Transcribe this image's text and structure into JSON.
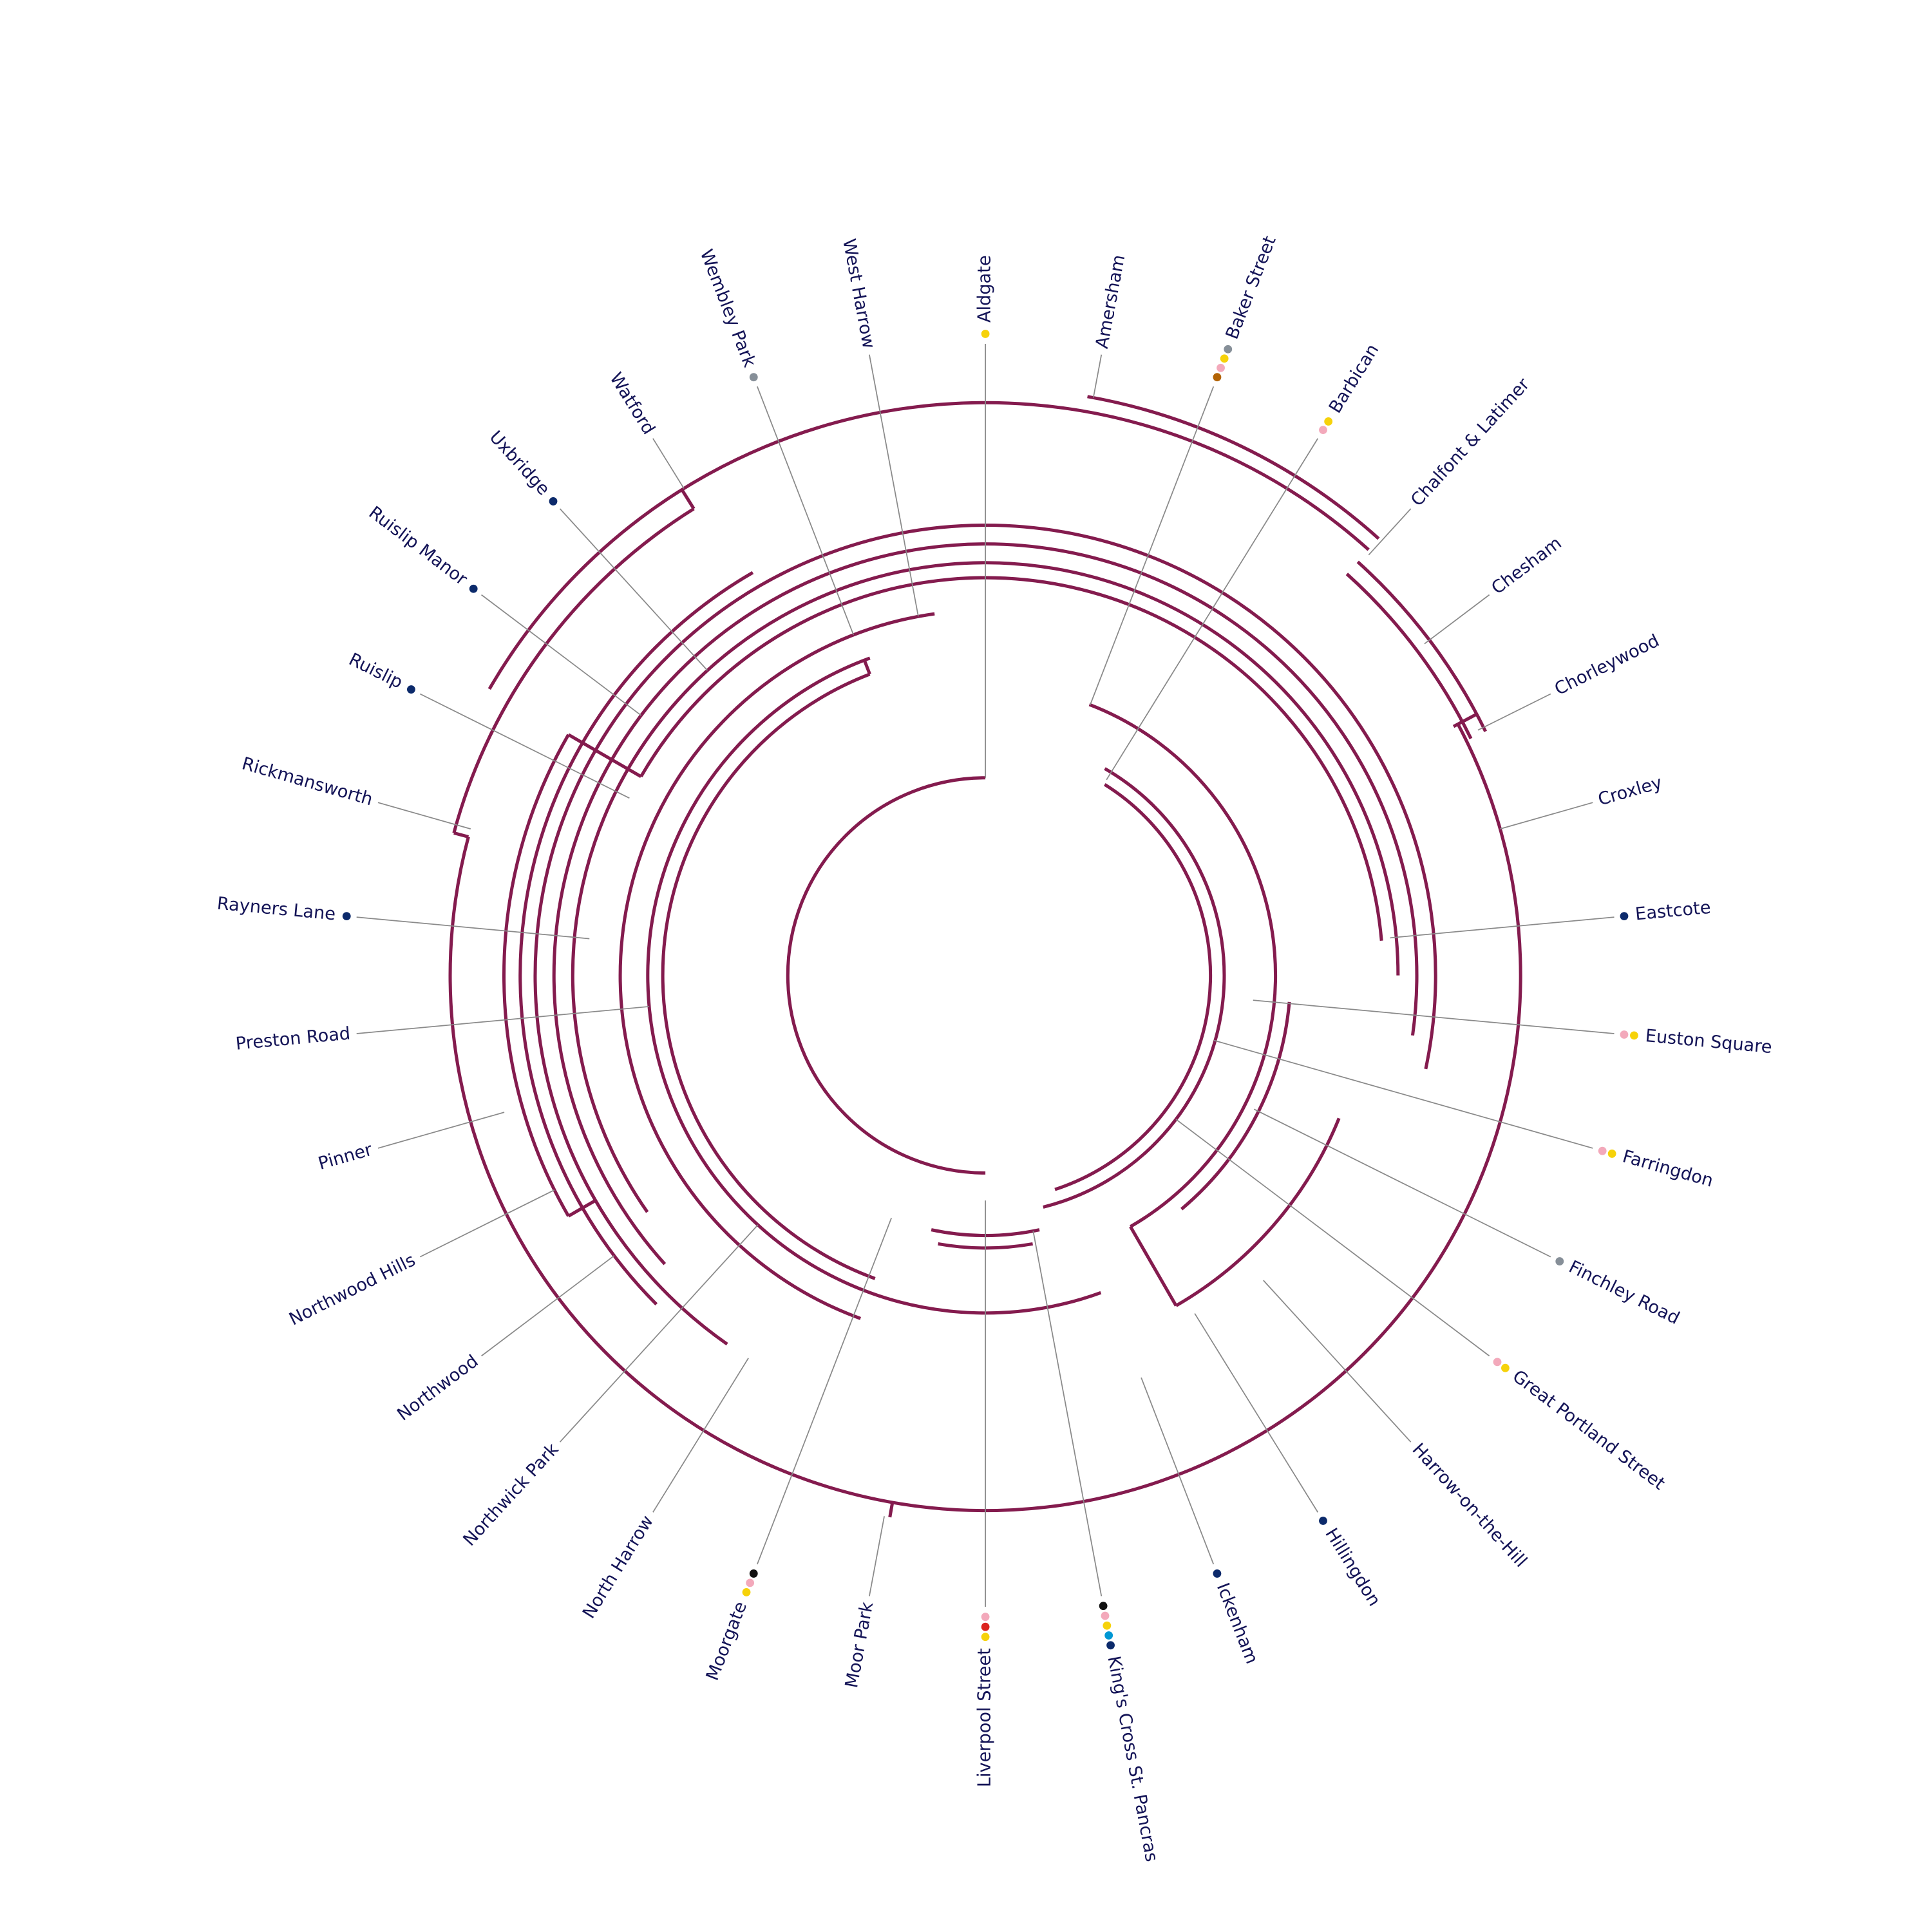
{
  "line_color": "#841b4e",
  "stations": [
    {
      "name": "Aldgate",
      "lines": [
        "#f6d20a"
      ]
    },
    {
      "name": "Amersham",
      "lines": []
    },
    {
      "name": "Baker Street",
      "lines": [
        "#868f98",
        "#f6d20a",
        "#f3a9bb",
        "#b36305"
      ]
    },
    {
      "name": "Barbican",
      "lines": [
        "#f6d20a",
        "#f3a9bb"
      ]
    },
    {
      "name": "Chalfont & Latimer",
      "lines": []
    },
    {
      "name": "Chesham",
      "lines": []
    },
    {
      "name": "Chorleywood",
      "lines": []
    },
    {
      "name": "Croxley",
      "lines": []
    },
    {
      "name": "Eastcote",
      "lines": [
        "#0c2a6b"
      ]
    },
    {
      "name": "Euston Square",
      "lines": [
        "#f6d20a",
        "#f3a9bb"
      ]
    },
    {
      "name": "Farringdon",
      "lines": [
        "#f6d20a",
        "#f3a9bb"
      ]
    },
    {
      "name": "Finchley Road",
      "lines": [
        "#868f98"
      ]
    },
    {
      "name": "Great Portland Street",
      "lines": [
        "#f6d20a",
        "#f3a9bb"
      ]
    },
    {
      "name": "Harrow-on-the-Hill",
      "lines": []
    },
    {
      "name": "Hillingdon",
      "lines": [
        "#0c2a6b"
      ]
    },
    {
      "name": "Ickenham",
      "lines": [
        "#0c2a6b"
      ]
    },
    {
      "name": "King's Cross St. Pancras",
      "lines": [
        "#0c2a6b",
        "#0098d4",
        "#f6d20a",
        "#f3a9bb",
        "#111111"
      ]
    },
    {
      "name": "Liverpool Street",
      "lines": [
        "#f6d20a",
        "#dc241f",
        "#f3a9bb"
      ]
    },
    {
      "name": "Moor Park",
      "lines": []
    },
    {
      "name": "Moorgate",
      "lines": [
        "#f6d20a",
        "#f3a9bb",
        "#111111"
      ]
    },
    {
      "name": "North Harrow",
      "lines": []
    },
    {
      "name": "Northwick Park",
      "lines": []
    },
    {
      "name": "Northwood",
      "lines": []
    },
    {
      "name": "Northwood Hills",
      "lines": []
    },
    {
      "name": "Pinner",
      "lines": []
    },
    {
      "name": "Preston Road",
      "lines": []
    },
    {
      "name": "Rayners Lane",
      "lines": [
        "#0c2a6b"
      ]
    },
    {
      "name": "Rickmansworth",
      "lines": []
    },
    {
      "name": "Ruislip",
      "lines": [
        "#0c2a6b"
      ]
    },
    {
      "name": "Ruislip Manor",
      "lines": [
        "#0c2a6b"
      ]
    },
    {
      "name": "Uxbridge",
      "lines": [
        "#0c2a6b"
      ]
    },
    {
      "name": "Watford",
      "lines": []
    },
    {
      "name": "Wembley Park",
      "lines": [
        "#868f98"
      ]
    },
    {
      "name": "West Harrow",
      "lines": []
    }
  ]
}
